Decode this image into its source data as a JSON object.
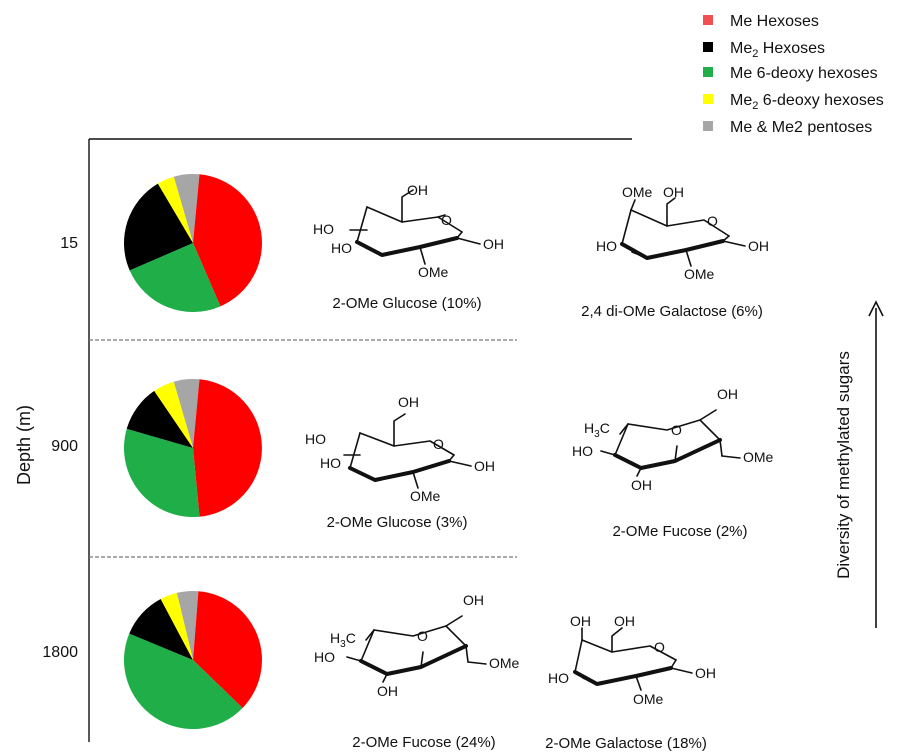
{
  "legend": [
    {
      "label": "Me Hexoses",
      "label_main": "Me Hexoses",
      "sub": "",
      "tail": "",
      "color": "#f05050"
    },
    {
      "label": "Me2 Hexoses",
      "label_main": "Me",
      "sub": "2",
      "tail": " Hexoses",
      "color": "#000000"
    },
    {
      "label": "Me 6-deoxy hexoses",
      "label_main": "Me 6-deoxy hexoses",
      "sub": "",
      "tail": "",
      "color": "#1fae48"
    },
    {
      "label": "Me2 6-deoxy hexoses",
      "label_main": "Me",
      "sub": "2",
      "tail": " 6-deoxy hexoses",
      "color": "#ffff00"
    },
    {
      "label": "Me & Me2 pentoses",
      "label_main": "Me & Me2 pentoses",
      "sub": "",
      "tail": "",
      "color": "#a6a6a6"
    }
  ],
  "y_axis_label": "Depth (m)",
  "arrow_label": "Diversity of methylated sugars",
  "chart_data": [
    {
      "type": "pie",
      "depth": "15",
      "categories": [
        "Me Hexoses",
        "Me 6-deoxy hexoses",
        "Me2 Hexoses",
        "Me2 6-deoxy hexoses",
        "Me & Me2 pentoses"
      ],
      "values": [
        42,
        25,
        23,
        4,
        6
      ],
      "colors": [
        "#ff0000",
        "#1fae48",
        "#000000",
        "#ffff00",
        "#a6a6a6"
      ]
    },
    {
      "type": "pie",
      "depth": "900",
      "categories": [
        "Me Hexoses",
        "Me 6-deoxy hexoses",
        "Me2 Hexoses",
        "Me2 6-deoxy hexoses",
        "Me & Me2 pentoses"
      ],
      "values": [
        47,
        31,
        11,
        5,
        6
      ],
      "colors": [
        "#ff0000",
        "#1fae48",
        "#000000",
        "#ffff00",
        "#a6a6a6"
      ]
    },
    {
      "type": "pie",
      "depth": "1800",
      "categories": [
        "Me Hexoses",
        "Me 6-deoxy hexoses",
        "Me2 Hexoses",
        "Me2 6-deoxy hexoses",
        "Me & Me2 pentoses"
      ],
      "values": [
        36,
        44,
        11,
        4,
        5
      ],
      "colors": [
        "#ff0000",
        "#1fae48",
        "#000000",
        "#ffff00",
        "#a6a6a6"
      ]
    }
  ],
  "rows": [
    {
      "depth": "15",
      "structures": [
        {
          "caption": "2-OMe Glucose (10%)",
          "atoms": {
            "top": "OH",
            "left1": "HO",
            "left2": "HO",
            "ring": "O",
            "right": "OH",
            "bottom": "OMe"
          }
        },
        {
          "caption": "2,4 di-OMe Galactose (6%)",
          "atoms": {
            "top1": "OMe",
            "top2": "OH",
            "left2": "HO",
            "ring": "O",
            "right": "OH",
            "bottom": "OMe"
          }
        }
      ]
    },
    {
      "depth": "900",
      "structures": [
        {
          "caption": "2-OMe Glucose (3%)",
          "atoms": {
            "top": "OH",
            "left1": "HO",
            "left2": "HO",
            "ring": "O",
            "right": "OH",
            "bottom": "OMe"
          }
        },
        {
          "caption": "2-OMe Fucose (2%)",
          "atoms": {
            "top": "OH",
            "methyl": "H",
            "methyl_sub": "3",
            "methyl_c": "C",
            "ring": "O",
            "left": "HO",
            "bottom": "OH",
            "right": "OMe"
          }
        }
      ]
    },
    {
      "depth": "1800",
      "structures": [
        {
          "caption": "2-OMe Fucose (24%)",
          "atoms": {
            "top": "OH",
            "methyl": "H",
            "methyl_sub": "3",
            "methyl_c": "C",
            "ring": "O",
            "left": "HO",
            "bottom": "OH",
            "right": "OMe"
          }
        },
        {
          "caption": "2-OMe Galactose (18%)",
          "atoms": {
            "top1": "OH",
            "top2": "OH",
            "left2": "HO",
            "ring": "O",
            "right": "OH",
            "bottom": "OMe"
          }
        }
      ]
    }
  ]
}
